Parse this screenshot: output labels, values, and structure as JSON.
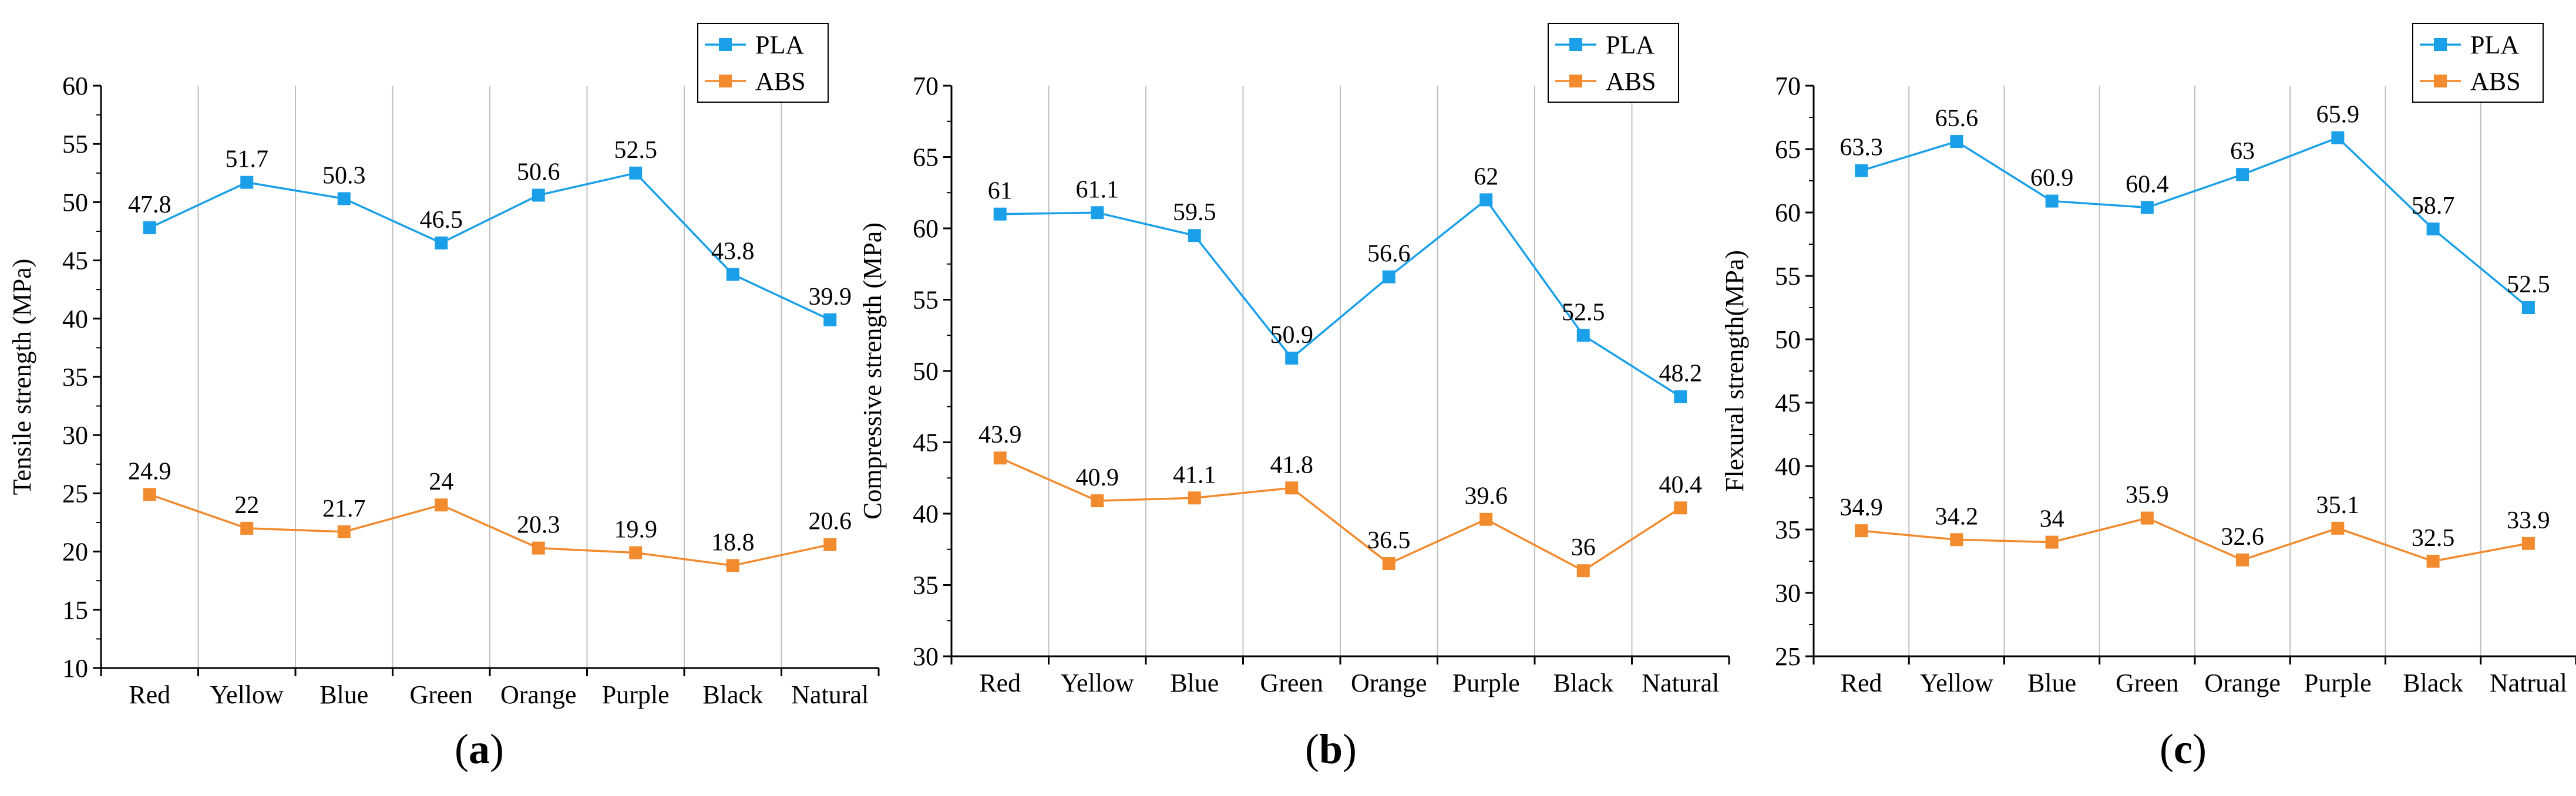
{
  "colors": {
    "pla": "#1aa0e8",
    "abs": "#f28a2e",
    "grid": "#bfbfbf",
    "axis": "#000000"
  },
  "chart_data": [
    {
      "type": "line",
      "panel": "a",
      "panel_open": "(",
      "panel_close": ")",
      "categories": [
        "Red",
        "Yellow",
        "Blue",
        "Green",
        "Orange",
        "Purple",
        "Black",
        "Natural"
      ],
      "ylabel": "Tensile strength (MPa)",
      "ylim": [
        10,
        60
      ],
      "yticks": [
        "10",
        "15",
        "20",
        "25",
        "30",
        "35",
        "40",
        "45",
        "50",
        "55",
        "60"
      ],
      "legend_position": "top-right",
      "series": [
        {
          "name": "PLA",
          "values": [
            47.8,
            51.7,
            50.3,
            46.5,
            50.6,
            52.5,
            43.8,
            39.9
          ],
          "labels": [
            "47.8",
            "51.7",
            "50.3",
            "46.5",
            "50.6",
            "52.5",
            "43.8",
            "39.9"
          ]
        },
        {
          "name": "ABS",
          "values": [
            24.9,
            22,
            21.7,
            24,
            20.3,
            19.9,
            18.8,
            20.6
          ],
          "labels": [
            "24.9",
            "22",
            "21.7",
            "24",
            "20.3",
            "19.9",
            "18.8",
            "20.6"
          ]
        }
      ]
    },
    {
      "type": "line",
      "panel": "b",
      "panel_open": "(",
      "panel_close": ")",
      "categories": [
        "Red",
        "Yellow",
        "Blue",
        "Green",
        "Orange",
        "Purple",
        "Black",
        "Natural"
      ],
      "ylabel": "Compressive strength (MPa)",
      "ylim": [
        30,
        70
      ],
      "yticks": [
        "30",
        "35",
        "40",
        "45",
        "50",
        "55",
        "60",
        "65",
        "70"
      ],
      "legend_position": "top-right",
      "series": [
        {
          "name": "PLA",
          "values": [
            61,
            61.1,
            59.5,
            50.9,
            56.6,
            62,
            52.5,
            48.2
          ],
          "labels": [
            "61",
            "61.1",
            "59.5",
            "50.9",
            "56.6",
            "62",
            "52.5",
            "48.2"
          ]
        },
        {
          "name": "ABS",
          "values": [
            43.9,
            40.9,
            41.1,
            41.8,
            36.5,
            39.6,
            36,
            40.4
          ],
          "labels": [
            "43.9",
            "40.9",
            "41.1",
            "41.8",
            "36.5",
            "39.6",
            "36",
            "40.4"
          ]
        }
      ]
    },
    {
      "type": "line",
      "panel": "c",
      "panel_open": "(",
      "panel_close": ")",
      "categories": [
        "Red",
        "Yellow",
        "Blue",
        "Green",
        "Orange",
        "Purple",
        "Black",
        "Natrual"
      ],
      "ylabel": "Flexural strength(MPa)",
      "ylim": [
        25,
        70
      ],
      "yticks": [
        "25",
        "30",
        "35",
        "40",
        "45",
        "50",
        "55",
        "60",
        "65",
        "70"
      ],
      "legend_position": "top-right",
      "series": [
        {
          "name": "PLA",
          "values": [
            63.3,
            65.6,
            60.9,
            60.4,
            63,
            65.9,
            58.7,
            52.5
          ],
          "labels": [
            "63.3",
            "65.6",
            "60.9",
            "60.4",
            "63",
            "65.9",
            "58.7",
            "52.5"
          ]
        },
        {
          "name": "ABS",
          "values": [
            34.9,
            34.2,
            34,
            35.9,
            32.6,
            35.1,
            32.5,
            33.9
          ],
          "labels": [
            "34.9",
            "34.2",
            "34",
            "35.9",
            "32.6",
            "35.1",
            "32.5",
            "33.9"
          ]
        }
      ]
    }
  ]
}
